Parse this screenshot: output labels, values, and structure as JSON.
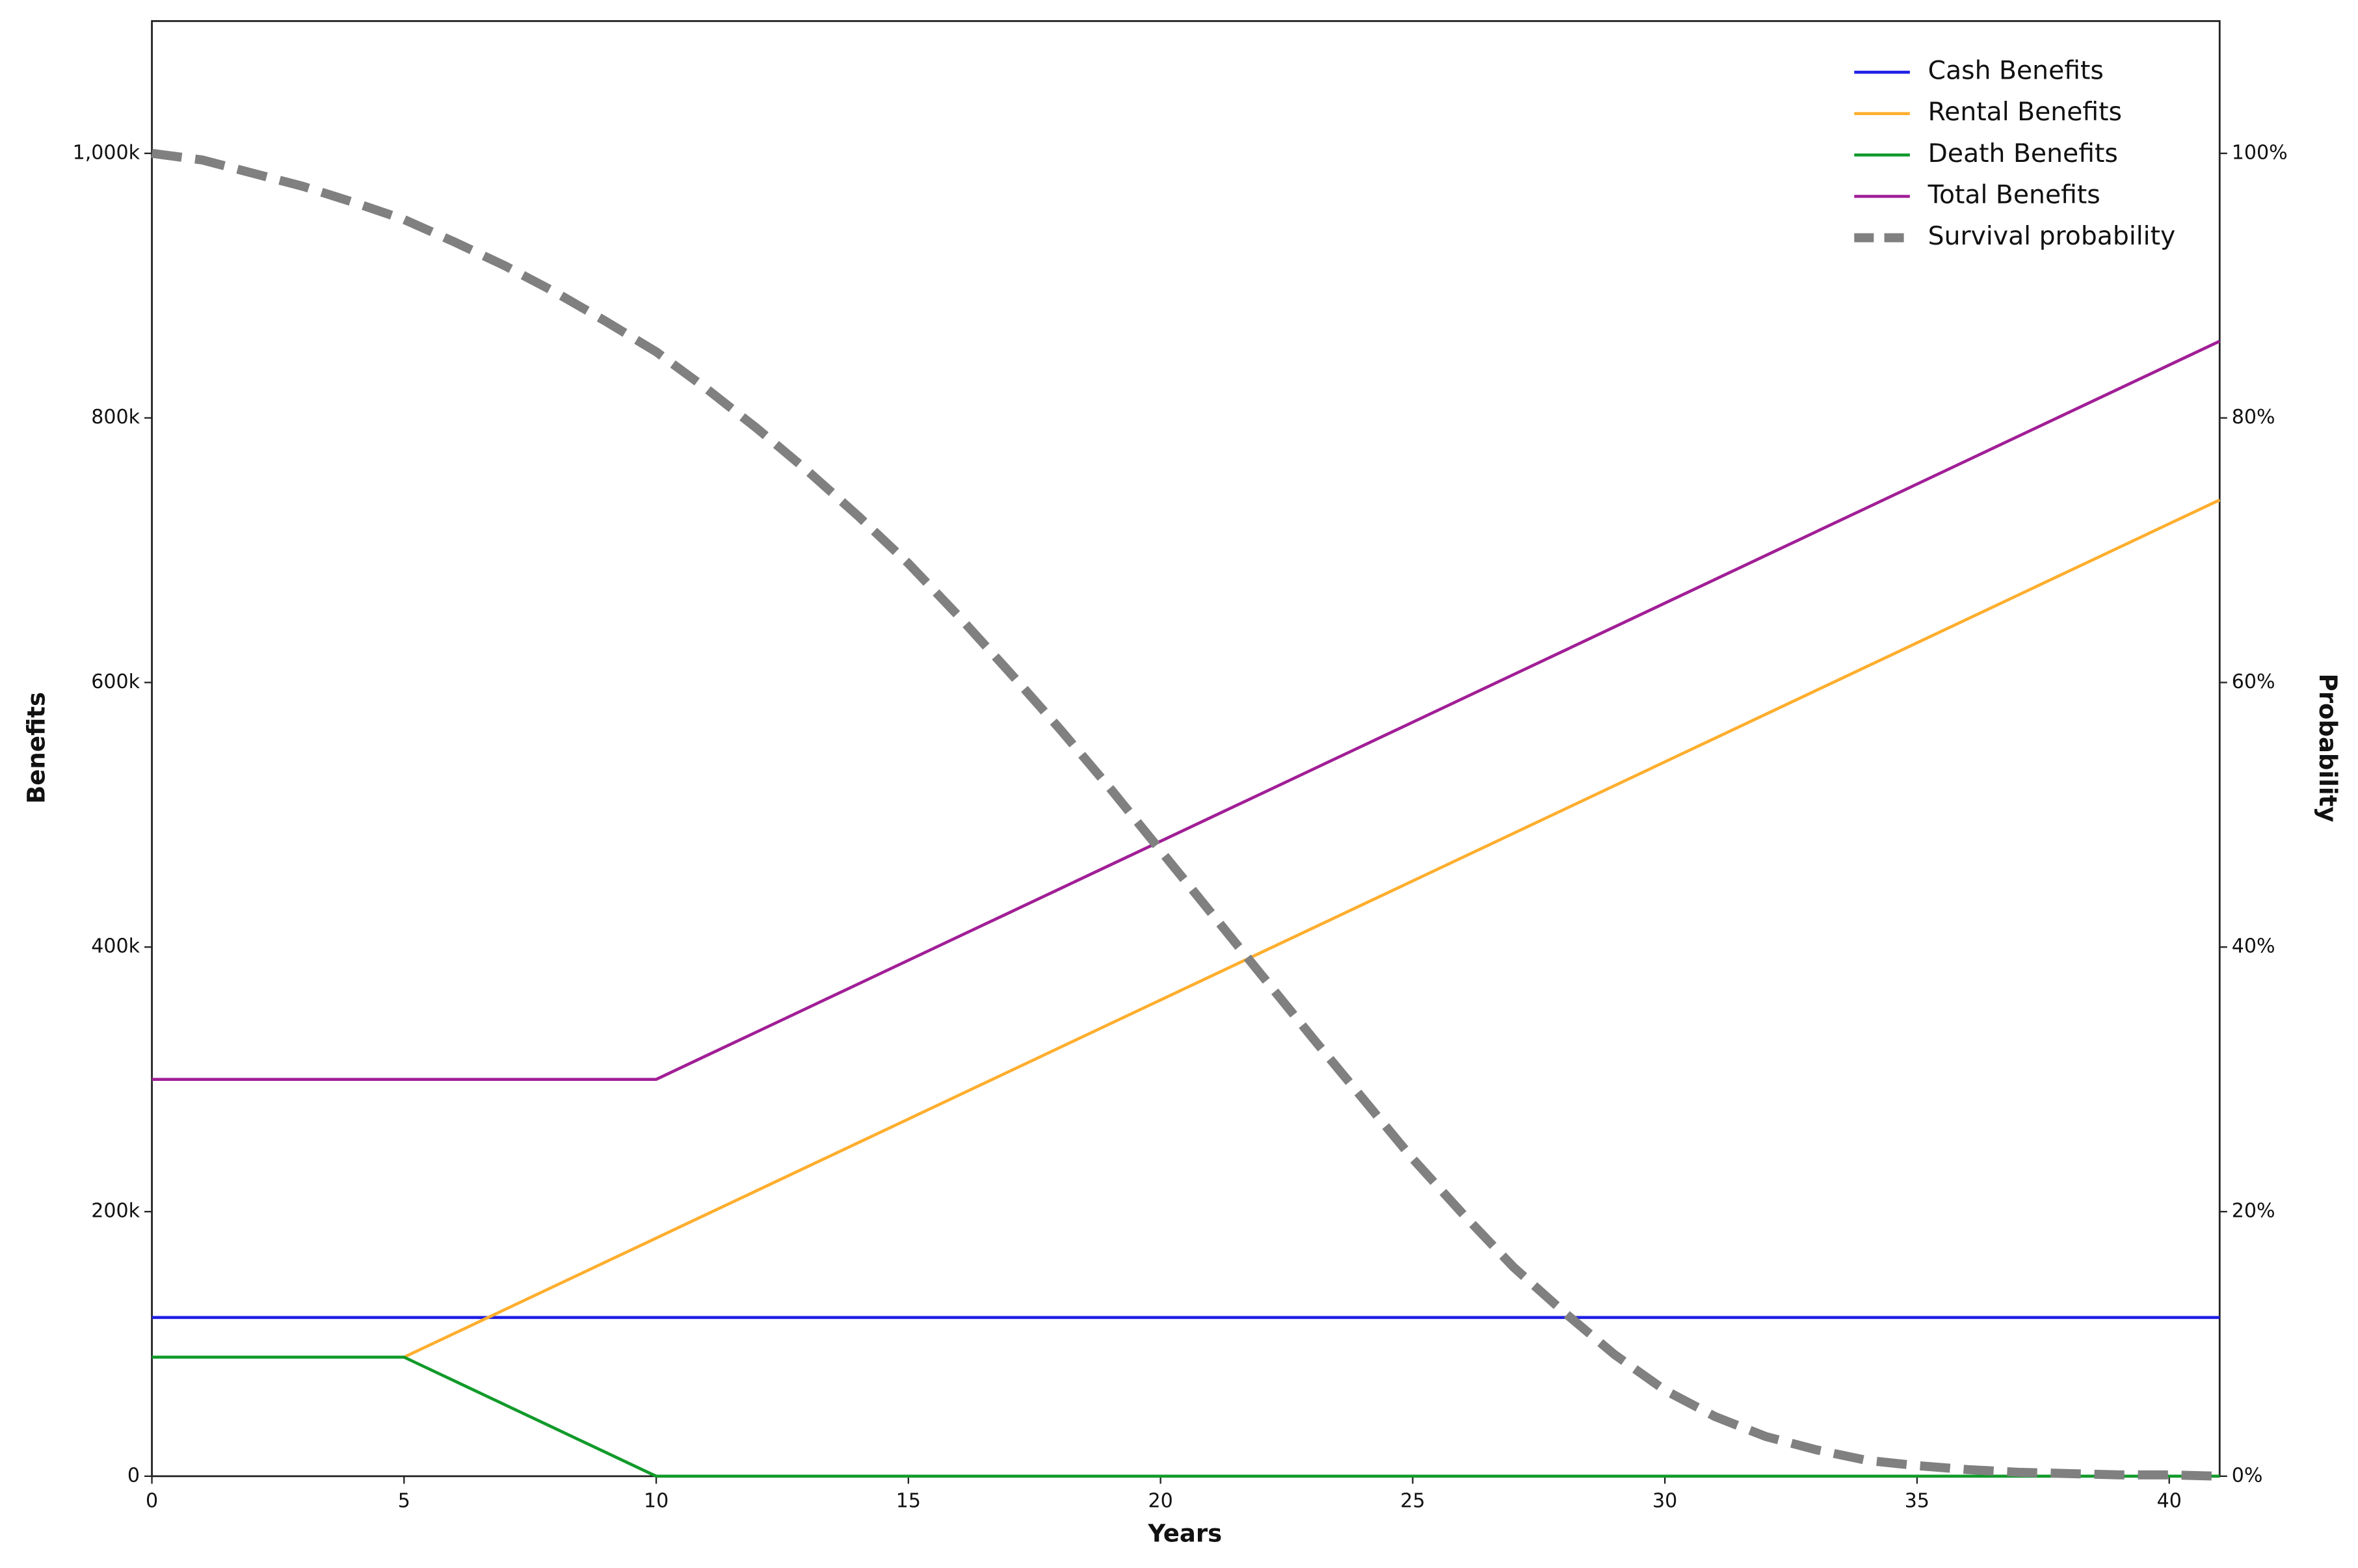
{
  "chart_data": {
    "type": "line",
    "x": [
      0,
      1,
      2,
      3,
      4,
      5,
      6,
      7,
      8,
      9,
      10,
      11,
      12,
      13,
      14,
      15,
      16,
      17,
      18,
      19,
      20,
      21,
      22,
      23,
      24,
      25,
      26,
      27,
      28,
      29,
      30,
      31,
      32,
      33,
      34,
      35,
      36,
      37,
      38,
      39,
      40,
      41
    ],
    "xlabel": "Years",
    "ylabel": "Benefits",
    "y2label": "Probability",
    "xlim": [
      0,
      41
    ],
    "xticks": [
      0,
      5,
      10,
      15,
      20,
      25,
      30,
      35,
      40
    ],
    "ylim": [
      0,
      1100000
    ],
    "yticks": [
      0,
      {
        "value": 200000,
        "label": "200k"
      },
      {
        "value": 400000,
        "label": "400k"
      },
      {
        "value": 600000,
        "label": "600k"
      },
      {
        "value": 800000,
        "label": "800k"
      },
      {
        "value": 1000000,
        "label": "1,000k"
      }
    ],
    "y2lim": [
      0,
      110
    ],
    "y2ticks": [
      {
        "value": 0,
        "label": "0%"
      },
      {
        "value": 20,
        "label": "20%"
      },
      {
        "value": 40,
        "label": "40%"
      },
      {
        "value": 60,
        "label": "60%"
      },
      {
        "value": 80,
        "label": "80%"
      },
      {
        "value": 100,
        "label": "100%"
      }
    ],
    "legend": "upper right",
    "series": [
      {
        "name": "Cash Benefits",
        "color": "#1f1fe6",
        "values": [
          120000,
          120000,
          120000,
          120000,
          120000,
          120000,
          120000,
          120000,
          120000,
          120000,
          120000,
          120000,
          120000,
          120000,
          120000,
          120000,
          120000,
          120000,
          120000,
          120000,
          120000,
          120000,
          120000,
          120000,
          120000,
          120000,
          120000,
          120000,
          120000,
          120000,
          120000,
          120000,
          120000,
          120000,
          120000,
          120000,
          120000,
          120000,
          120000,
          120000,
          120000,
          120000
        ]
      },
      {
        "name": "Rental Benefits",
        "color": "#ffae2e",
        "values": [
          null,
          null,
          null,
          null,
          null,
          90000,
          108000,
          126000,
          144000,
          162000,
          180000,
          198000,
          216000,
          234000,
          252000,
          270000,
          288000,
          306000,
          324000,
          342000,
          360000,
          378000,
          396000,
          414000,
          432000,
          450000,
          468000,
          486000,
          504000,
          522000,
          540000,
          558000,
          576000,
          594000,
          612000,
          630000,
          648000,
          666000,
          684000,
          702000,
          720000,
          738000
        ]
      },
      {
        "name": "Death Benefits",
        "color": "#119a2a",
        "values": [
          90000,
          90000,
          90000,
          90000,
          90000,
          90000,
          72000,
          54000,
          36000,
          18000,
          0,
          0,
          0,
          0,
          0,
          0,
          0,
          0,
          0,
          0,
          0,
          0,
          0,
          0,
          0,
          0,
          0,
          0,
          0,
          0,
          0,
          0,
          0,
          0,
          0,
          0,
          0,
          0,
          0,
          0,
          0,
          0
        ]
      },
      {
        "name": "Total Benefits",
        "color": "#a11e96",
        "values": [
          300000,
          300000,
          300000,
          300000,
          300000,
          300000,
          300000,
          300000,
          300000,
          300000,
          300000,
          318000,
          336000,
          354000,
          372000,
          390000,
          408000,
          426000,
          444000,
          462000,
          480000,
          498000,
          516000,
          534000,
          552000,
          570000,
          588000,
          606000,
          624000,
          642000,
          660000,
          678000,
          696000,
          714000,
          732000,
          750000,
          768000,
          786000,
          804000,
          822000,
          840000,
          858000
        ]
      },
      {
        "name": "Survival probability",
        "color": "#808080",
        "axis": "y2",
        "linestyle": "dashed",
        "values": [
          100,
          99.5,
          98.5,
          97.5,
          96.3,
          95,
          93.3,
          91.5,
          89.5,
          87.3,
          85,
          82.2,
          79.2,
          76,
          72.6,
          69,
          65,
          60.8,
          56.5,
          52,
          47.3,
          42.6,
          37.9,
          33.2,
          28.6,
          24,
          19.8,
          15.8,
          12.4,
          9.2,
          6.5,
          4.5,
          3,
          2,
          1.2,
          0.8,
          0.5,
          0.3,
          0.2,
          0.1,
          0.1,
          0
        ]
      }
    ]
  }
}
